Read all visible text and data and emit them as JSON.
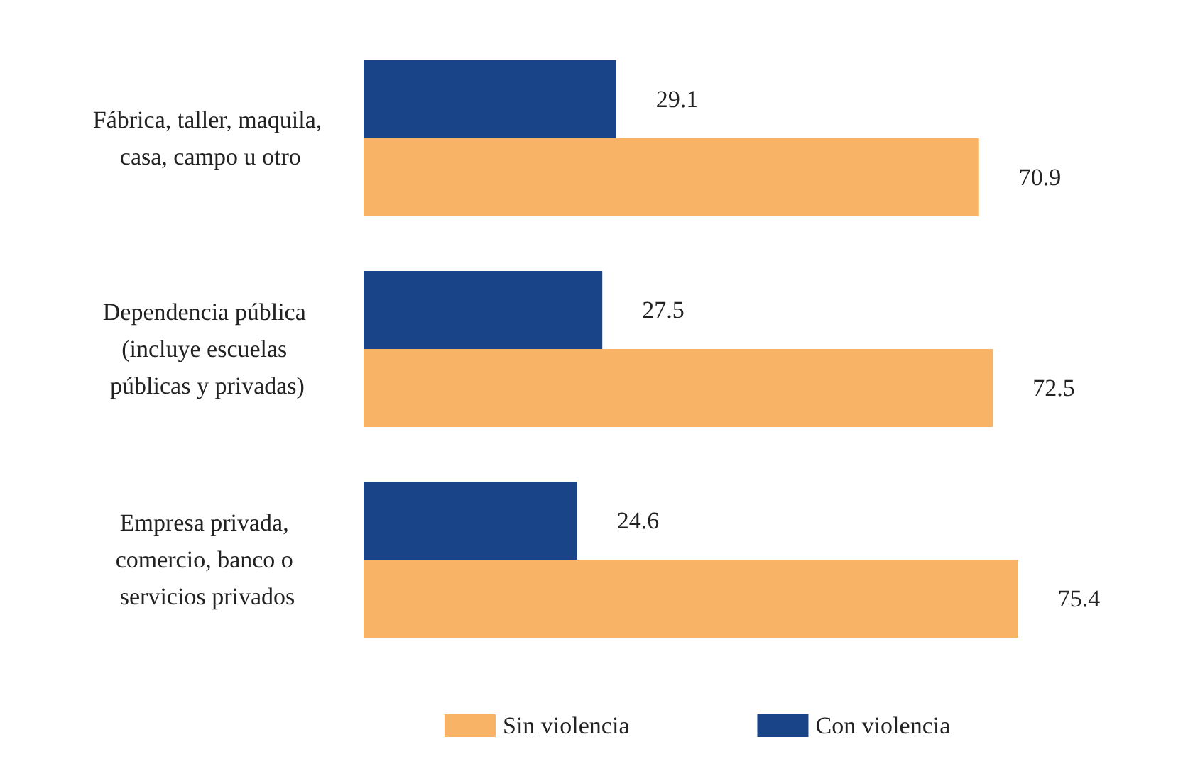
{
  "chart_data": {
    "type": "bar",
    "orientation": "horizontal",
    "categories": [
      "Fábrica, taller, maquila, casa, campo u otro",
      "Dependencia pública (incluye escuelas públicas y privadas)",
      "Empresa privada, comercio, banco o servicios privados"
    ],
    "series": [
      {
        "name": "Sin violencia",
        "color": "#f9b366",
        "values": [
          70.9,
          72.5,
          75.4
        ]
      },
      {
        "name": "Con violencia",
        "color": "#1a4488",
        "values": [
          29.1,
          27.5,
          24.6
        ]
      }
    ],
    "data_labels": true,
    "legend": "bottom"
  }
}
